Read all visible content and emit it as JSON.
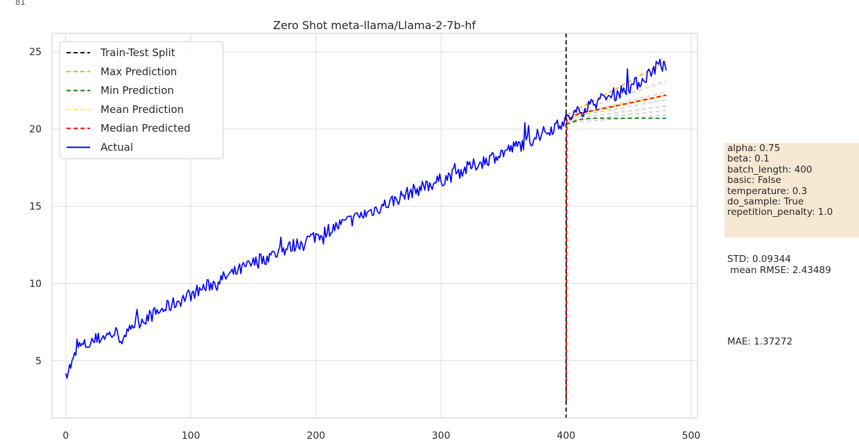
{
  "cell_number": "81",
  "chart_data": {
    "type": "line",
    "title": "Zero Shot meta-llama/Llama-2-7b-hf",
    "xlabel": "",
    "ylabel": "",
    "xlim": [
      -11,
      505
    ],
    "ylim": [
      1.3,
      26.2
    ],
    "xticks": [
      0,
      100,
      200,
      300,
      400,
      500
    ],
    "yticks": [
      5,
      10,
      15,
      20,
      25
    ],
    "grid": true,
    "legend_position": "top-left",
    "split_x": 400,
    "legend": [
      {
        "label": "Train-Test Split",
        "color": "#000000",
        "dash": true
      },
      {
        "label": "Max Prediction",
        "color": "#ffa500",
        "dash": true
      },
      {
        "label": "Min Prediction",
        "color": "#008000",
        "dash": true
      },
      {
        "label": "Mean Prediction",
        "color": "#ffff00",
        "dash": true
      },
      {
        "label": "Median Predicted",
        "color": "#ff0000",
        "dash": true
      },
      {
        "label": "Actual",
        "color": "#0000ff",
        "dash": false
      }
    ],
    "actual_anchors": [
      [
        0,
        4.2
      ],
      [
        5,
        4.8
      ],
      [
        10,
        5.9
      ],
      [
        20,
        6.1
      ],
      [
        30,
        6.6
      ],
      [
        40,
        6.8
      ],
      [
        48,
        6.2
      ],
      [
        50,
        7.2
      ],
      [
        75,
        8.2
      ],
      [
        100,
        9.3
      ],
      [
        125,
        10.3
      ],
      [
        150,
        11.3
      ],
      [
        175,
        12.2
      ],
      [
        200,
        13.1
      ],
      [
        225,
        14.0
      ],
      [
        250,
        14.9
      ],
      [
        275,
        15.9
      ],
      [
        300,
        16.7
      ],
      [
        325,
        17.6
      ],
      [
        350,
        18.5
      ],
      [
        375,
        19.4
      ],
      [
        400,
        20.6
      ],
      [
        420,
        21.6
      ],
      [
        440,
        22.3
      ],
      [
        460,
        23.1
      ],
      [
        475,
        24.3
      ],
      [
        480,
        23.8
      ]
    ],
    "prediction_lines": {
      "min": [
        [
          400,
          20.3
        ],
        [
          410,
          20.6
        ],
        [
          420,
          20.7
        ],
        [
          480,
          20.7
        ]
      ],
      "median": [
        [
          400,
          2.4
        ],
        [
          400.5,
          20.6
        ],
        [
          410,
          21.0
        ],
        [
          440,
          21.5
        ],
        [
          480,
          22.2
        ]
      ],
      "max": [
        [
          400,
          20.9
        ],
        [
          440,
          22.6
        ],
        [
          480,
          24.4
        ]
      ],
      "mean": [
        [
          400,
          20.7
        ],
        [
          440,
          21.5
        ],
        [
          480,
          22.2
        ]
      ],
      "samples": [
        [
          [
            400,
            20.9
          ],
          [
            480,
            23.1
          ]
        ],
        [
          [
            400,
            20.8
          ],
          [
            480,
            22.4
          ]
        ],
        [
          [
            400,
            20.7
          ],
          [
            480,
            21.9
          ]
        ],
        [
          [
            400,
            20.6
          ],
          [
            480,
            21.5
          ]
        ],
        [
          [
            400,
            20.5
          ],
          [
            480,
            21.2
          ]
        ],
        [
          [
            400,
            20.4
          ],
          [
            480,
            20.9
          ]
        ]
      ]
    }
  },
  "info_box": {
    "lines": [
      "alpha: 0.75",
      "beta: 0.1",
      "batch_length: 400",
      "basic: False",
      "temperature: 0.3",
      "do_sample: True",
      "repetition_penalty: 1.0"
    ]
  },
  "stats": {
    "std_text": "STD: 0.09344\n mean RMSE: 2.43489",
    "mae_text": "MAE: 1.37272"
  }
}
